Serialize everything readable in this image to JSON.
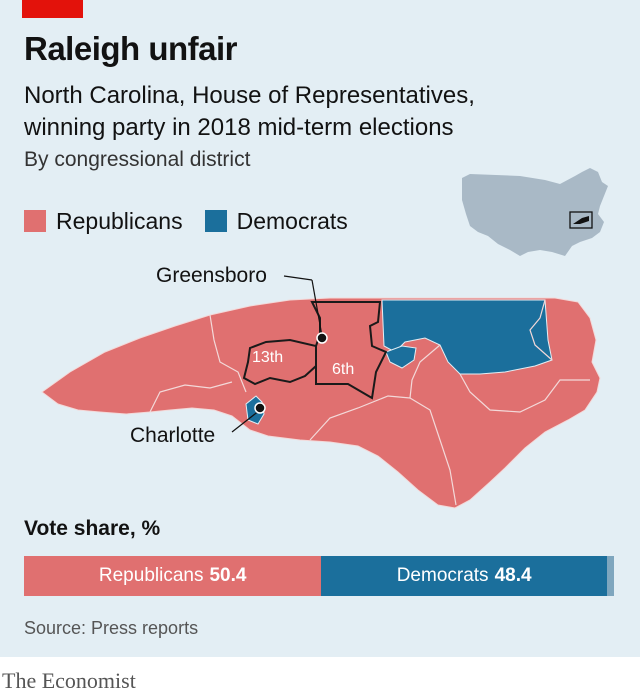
{
  "header": {
    "title": "Raleigh unfair",
    "subtitle": "North Carolina, House of Representatives, winning party in 2018 mid-term elections",
    "byline": "By congressional district"
  },
  "legend": [
    {
      "label": "Republicans",
      "color": "#e07070"
    },
    {
      "label": "Democrats",
      "color": "#1b6f9c"
    }
  ],
  "map": {
    "labels": {
      "greensboro": "Greensboro",
      "charlotte": "Charlotte",
      "district_13": "13th",
      "district_6": "6th"
    },
    "colors": {
      "republican": "#e07070",
      "democrat": "#1b6f9c",
      "usa_inset": "#a9b9c6"
    }
  },
  "vote_share": {
    "title": "Vote share, %",
    "republicans": {
      "label": "Republicans",
      "value": 50.4
    },
    "democrats": {
      "label": "Democrats",
      "value": 48.4
    }
  },
  "source": "Source: Press reports",
  "brand": "The Economist"
}
